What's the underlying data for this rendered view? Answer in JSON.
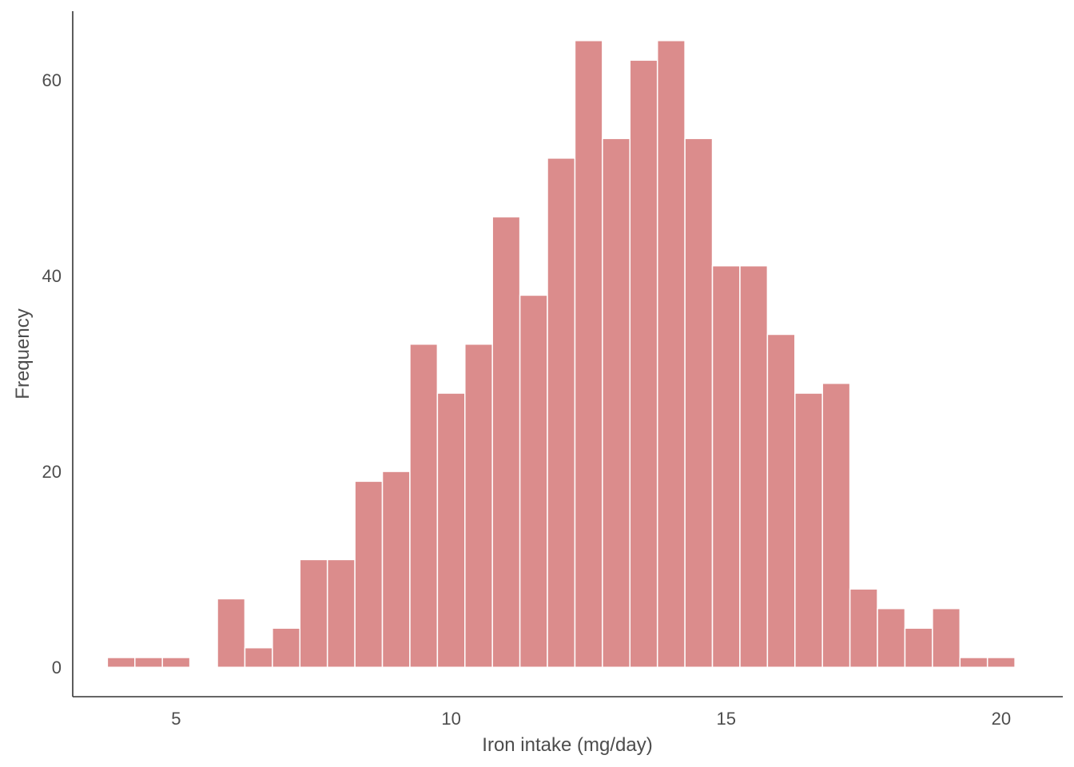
{
  "chart_data": {
    "type": "bar",
    "subtype": "histogram",
    "title": "",
    "xlabel": "Iron intake (mg/day)",
    "ylabel": "Frequency",
    "xlim": [
      3.12,
      21.12
    ],
    "ylim": [
      -3,
      67
    ],
    "x_ticks": [
      5,
      10,
      15,
      20
    ],
    "y_ticks": [
      0,
      20,
      40,
      60
    ],
    "grid": false,
    "bar_color": "#DB8C8C",
    "bin_width": 0.5,
    "bins": [
      {
        "x0": 3.75,
        "x1": 4.25,
        "count": 1
      },
      {
        "x0": 4.25,
        "x1": 4.75,
        "count": 1
      },
      {
        "x0": 4.75,
        "x1": 5.25,
        "count": 1
      },
      {
        "x0": 5.25,
        "x1": 5.75,
        "count": 0
      },
      {
        "x0": 5.75,
        "x1": 6.25,
        "count": 7
      },
      {
        "x0": 6.25,
        "x1": 6.75,
        "count": 2
      },
      {
        "x0": 6.75,
        "x1": 7.25,
        "count": 4
      },
      {
        "x0": 7.25,
        "x1": 7.75,
        "count": 11
      },
      {
        "x0": 7.75,
        "x1": 8.25,
        "count": 11
      },
      {
        "x0": 8.25,
        "x1": 8.75,
        "count": 19
      },
      {
        "x0": 8.75,
        "x1": 9.25,
        "count": 20
      },
      {
        "x0": 9.25,
        "x1": 9.75,
        "count": 33
      },
      {
        "x0": 9.75,
        "x1": 10.25,
        "count": 28
      },
      {
        "x0": 10.25,
        "x1": 10.75,
        "count": 33
      },
      {
        "x0": 10.75,
        "x1": 11.25,
        "count": 46
      },
      {
        "x0": 11.25,
        "x1": 11.75,
        "count": 38
      },
      {
        "x0": 11.75,
        "x1": 12.25,
        "count": 52
      },
      {
        "x0": 12.25,
        "x1": 12.75,
        "count": 64
      },
      {
        "x0": 12.75,
        "x1": 13.25,
        "count": 54
      },
      {
        "x0": 13.25,
        "x1": 13.75,
        "count": 62
      },
      {
        "x0": 13.75,
        "x1": 14.25,
        "count": 64
      },
      {
        "x0": 14.25,
        "x1": 14.75,
        "count": 54
      },
      {
        "x0": 14.75,
        "x1": 15.25,
        "count": 41
      },
      {
        "x0": 15.25,
        "x1": 15.75,
        "count": 41
      },
      {
        "x0": 15.75,
        "x1": 16.25,
        "count": 34
      },
      {
        "x0": 16.25,
        "x1": 16.75,
        "count": 28
      },
      {
        "x0": 16.75,
        "x1": 17.25,
        "count": 29
      },
      {
        "x0": 17.25,
        "x1": 17.75,
        "count": 8
      },
      {
        "x0": 17.75,
        "x1": 18.25,
        "count": 6
      },
      {
        "x0": 18.25,
        "x1": 18.75,
        "count": 4
      },
      {
        "x0": 18.75,
        "x1": 19.25,
        "count": 6
      },
      {
        "x0": 19.25,
        "x1": 19.75,
        "count": 1
      },
      {
        "x0": 19.75,
        "x1": 20.25,
        "count": 1
      }
    ]
  }
}
